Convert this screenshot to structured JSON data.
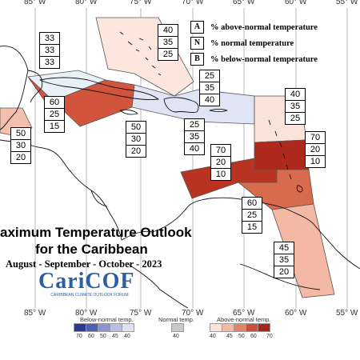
{
  "longitude_ticks_top": [
    "85° W",
    "80° W",
    "75° W",
    "70° W",
    "65° W",
    "60° W",
    "55° W"
  ],
  "longitude_ticks_bottom": [
    "85° W",
    "80° W",
    "75° W",
    "70° W",
    "65° W",
    "60° W",
    "55° W"
  ],
  "legend": {
    "above": {
      "key": "A",
      "label": "% above-normal temperature"
    },
    "normal": {
      "key": "N",
      "label": "% normal temperature"
    },
    "below": {
      "key": "B",
      "label": "% below-normal temperature"
    }
  },
  "title_line1": "aximum Temperature Outlook",
  "title_line2": "for the Caribbean",
  "season": "August - September - October - 2023",
  "logo": {
    "text": "CariCOF",
    "subtitle": "CARIBBEAN CLIMATE OUTLOOK FORUM"
  },
  "colorbar": {
    "below_title": "Below-normal temp.",
    "normal_title": "Normal temp.",
    "above_title": "Above-normal temp.",
    "below_labels": [
      "70",
      "60",
      "50",
      "45",
      "40"
    ],
    "normal_label": "40",
    "above_labels": [
      "40",
      "45",
      "50",
      "60",
      "70"
    ],
    "below_colors": [
      "#2b3a8c",
      "#5060b0",
      "#8d95cf",
      "#b9bfe3",
      "#dfe2f3"
    ],
    "normal_color": "#c8c8c8",
    "above_colors": [
      "#fbe3da",
      "#f4b8a3",
      "#e38468",
      "#cc5037",
      "#a32619"
    ]
  },
  "regions": [
    {
      "id": "bahamas",
      "color": "#fce6de",
      "above": "40",
      "normal": "35",
      "below": "25"
    },
    {
      "id": "cuba_west",
      "color": "#e8f0f8",
      "above": "33",
      "normal": "33",
      "below": "33"
    },
    {
      "id": "cuba_central",
      "color": "#d2543c",
      "above": "60",
      "normal": "25",
      "below": "15"
    },
    {
      "id": "hispaniola",
      "color": "#e0e4f4",
      "above": "25",
      "normal": "35",
      "below": "40"
    },
    {
      "id": "cayman_jamaica_south",
      "color": "#e4e7f5",
      "above": "25",
      "normal": "35",
      "below": "40"
    },
    {
      "id": "belize_honduras",
      "color": "#f4c0ae",
      "above": "50",
      "normal": "30",
      "below": "20"
    },
    {
      "id": "central_america_box",
      "color": "#f8f8f8",
      "above": "50",
      "normal": "30",
      "below": "20"
    },
    {
      "id": "leeward_islands",
      "color": "#fbe3da",
      "above": "40",
      "normal": "35",
      "below": "25"
    },
    {
      "id": "lesser_antilles",
      "color": "#b0291e",
      "above": "70",
      "normal": "20",
      "below": "10"
    },
    {
      "id": "caribbean_south_coast",
      "color": "#b83322",
      "above": "70",
      "normal": "20",
      "below": "10"
    },
    {
      "id": "trinidad_venezuela",
      "color": "#d86a4e",
      "above": "60",
      "normal": "25",
      "below": "15"
    },
    {
      "id": "guianas",
      "color": "#f4b9a4",
      "above": "45",
      "normal": "35",
      "below": "20"
    }
  ]
}
